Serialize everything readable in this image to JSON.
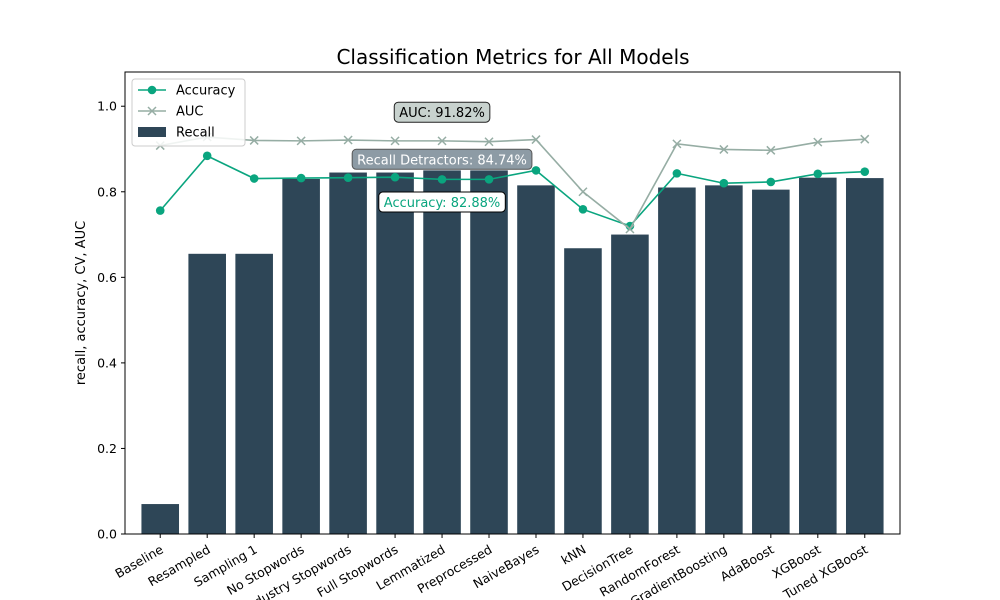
{
  "chart_data": {
    "type": "bar",
    "title": "Classification Metrics for All Models",
    "xlabel": "",
    "ylabel": "recall, accuracy, CV, AUC",
    "ylim": [
      0,
      1.08
    ],
    "yticks": [
      "0.0",
      "0.2",
      "0.4",
      "0.6",
      "0.8",
      "1.0"
    ],
    "categories": [
      "Baseline",
      "Resampled",
      "Sampling 1",
      "No Stopwords",
      "Industry Stopwords",
      "Full Stopwords",
      "Lemmatized",
      "Preprocessed",
      "NaiveBayes",
      "kNN",
      "DecisionTree",
      "RandomForest",
      "GradientBoosting",
      "AdaBoost",
      "XGBoost",
      "Tuned XGBoost"
    ],
    "series": [
      {
        "name": "Recall",
        "type": "bar",
        "color": "#2e4657",
        "values": [
          0.07,
          0.655,
          0.655,
          0.83,
          0.845,
          0.845,
          0.85,
          0.85,
          0.815,
          0.668,
          0.7,
          0.81,
          0.815,
          0.805,
          0.833,
          0.832
        ]
      },
      {
        "name": "Accuracy",
        "type": "line",
        "marker": "circle",
        "color": "#0aa57f",
        "values": [
          0.756,
          0.884,
          0.831,
          0.832,
          0.833,
          0.834,
          0.829,
          0.829,
          0.85,
          0.759,
          0.72,
          0.843,
          0.82,
          0.823,
          0.842,
          0.847
        ]
      },
      {
        "name": "AUC",
        "type": "line",
        "marker": "x",
        "color": "#96ada4",
        "values": [
          0.908,
          0.928,
          0.92,
          0.919,
          0.921,
          0.919,
          0.919,
          0.917,
          0.922,
          0.8,
          0.713,
          0.912,
          0.899,
          0.897,
          0.916,
          0.923
        ]
      }
    ],
    "legend": {
      "placement": "upper-left",
      "entries": [
        "Accuracy",
        "AUC",
        "Recall"
      ]
    },
    "annotations": [
      {
        "text": "AUC: 91.82%",
        "x": 6,
        "y": 0.986,
        "bg": "#c8d2ce",
        "fg": "#000000",
        "border": "#222222"
      },
      {
        "text": "Recall Detractors: 84.74%",
        "x": 6,
        "y": 0.876,
        "bg": "#8d9ba5",
        "fg": "#ffffff",
        "border": "#555555"
      },
      {
        "text": "Accuracy: 82.88%",
        "x": 6,
        "y": 0.776,
        "bg": "#ffffff",
        "fg": "#0aa57f",
        "border": "#000000"
      }
    ],
    "grid": false
  }
}
